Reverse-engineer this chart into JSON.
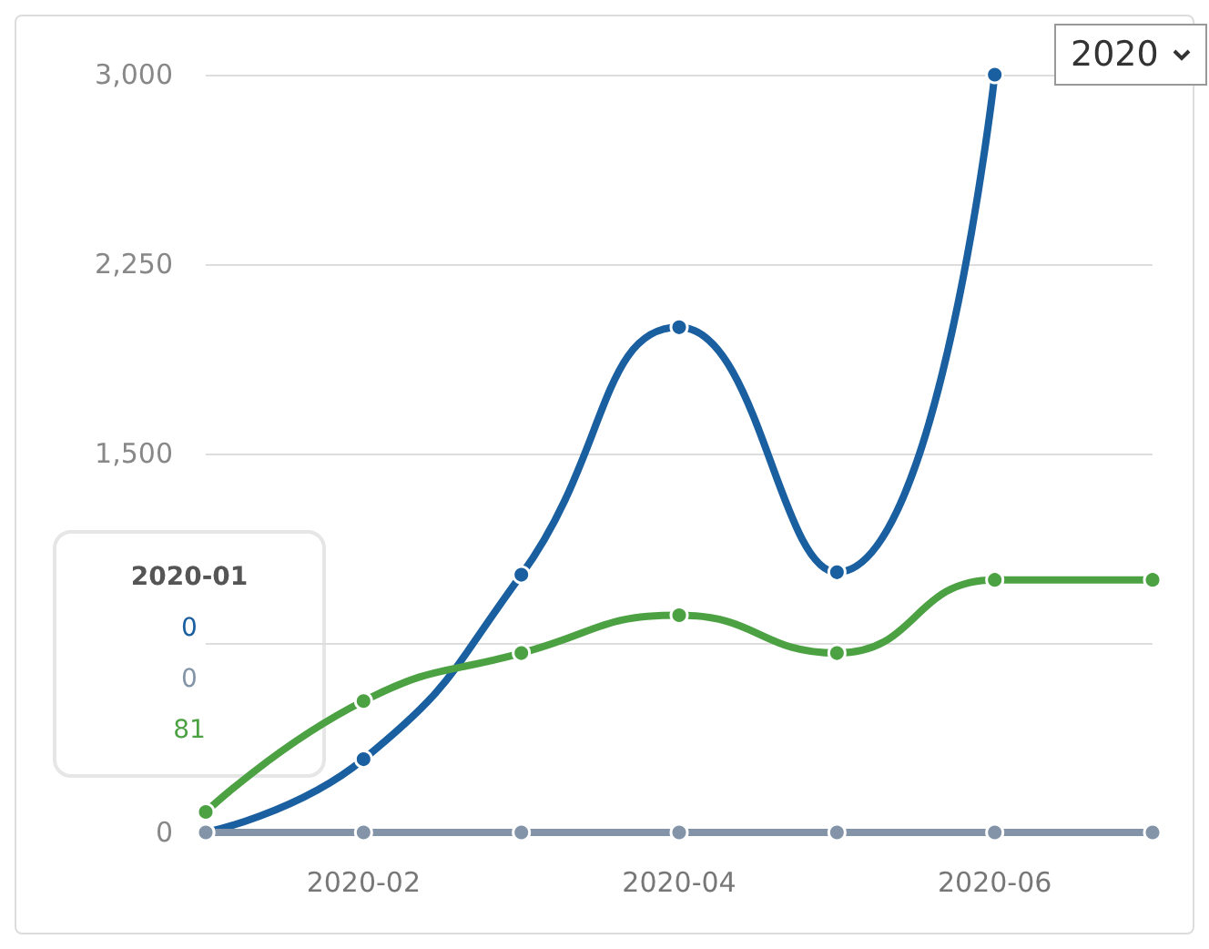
{
  "chart_data": {
    "type": "line",
    "categories": [
      null,
      "2020-02",
      null,
      "2020-04",
      null,
      "2020-06",
      null
    ],
    "series": [
      {
        "color": "#1a5fa0",
        "values": [
          0,
          290,
          1020,
          2000,
          1030,
          3000,
          null
        ]
      },
      {
        "color": "#8394a8",
        "values": [
          0,
          0,
          0,
          0,
          0,
          0,
          0
        ]
      },
      {
        "color": "#4ca243",
        "values": [
          81,
          520,
          710,
          860,
          710,
          1000,
          1000
        ]
      }
    ],
    "ylim": [
      0,
      3000
    ],
    "yticks": [
      0,
      {
        "value": 750,
        "label": null
      },
      {
        "value": 1500,
        "label": "1,500"
      },
      {
        "value": 2250,
        "label": "2,250"
      },
      {
        "value": 3000,
        "label": "3,000"
      }
    ],
    "grid": "y",
    "marker": "circle",
    "line_style": "solid",
    "annotations": [
      "2020",
      "2020-01",
      "0",
      "0",
      "81"
    ]
  }
}
